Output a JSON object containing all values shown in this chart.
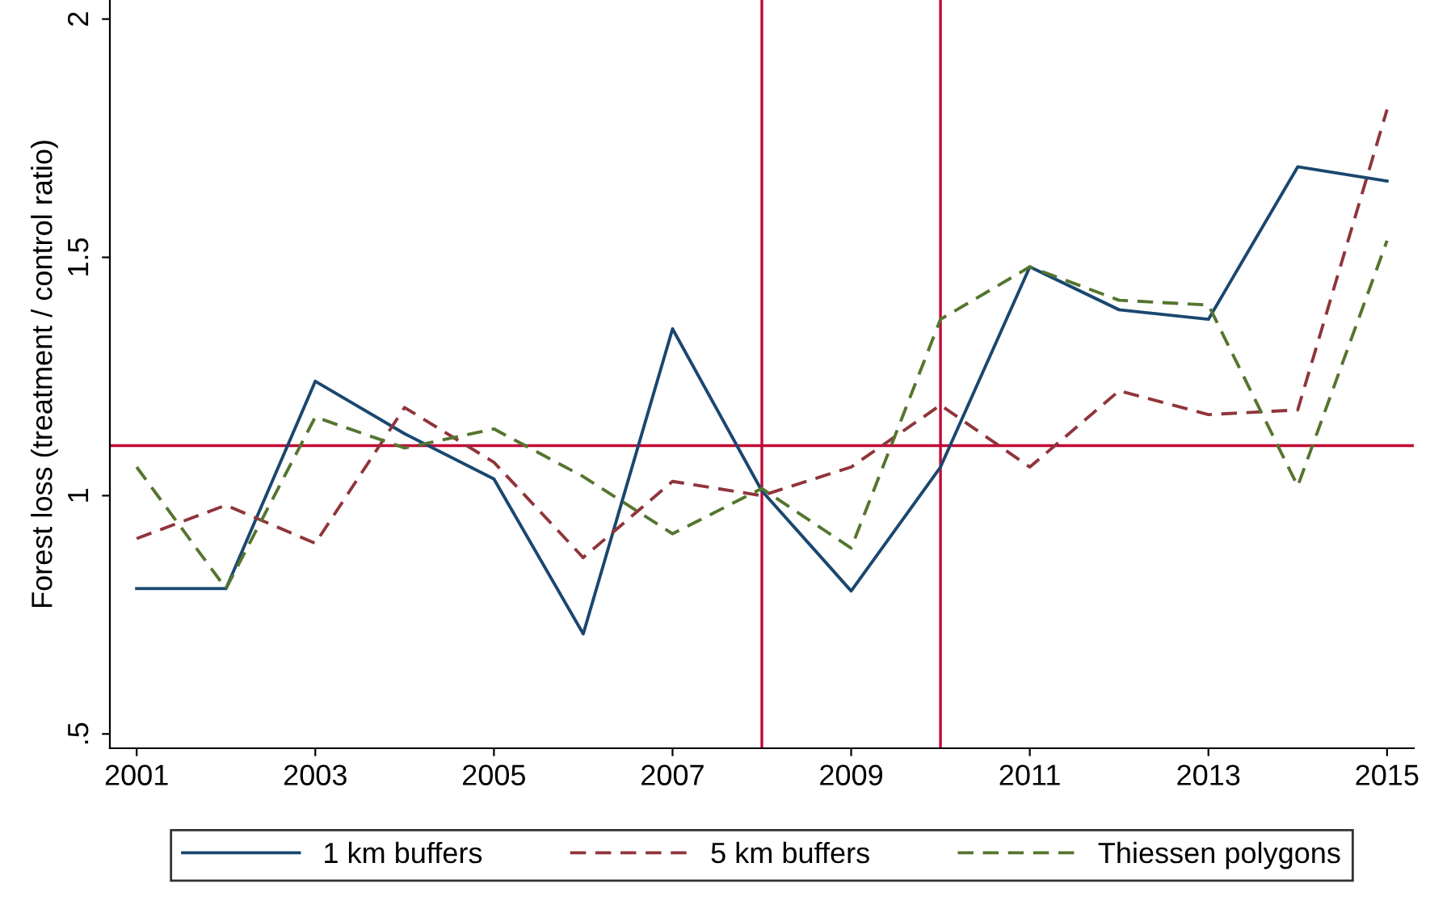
{
  "chart_data": {
    "type": "line",
    "ylabel": "Forest loss (treatment / control ratio)",
    "x": [
      2001,
      2002,
      2003,
      2004,
      2005,
      2006,
      2007,
      2008,
      2009,
      2010,
      2011,
      2012,
      2013,
      2014,
      2015
    ],
    "series": [
      {
        "name": "1 km buffers",
        "color": "#1a476f",
        "line_style": "solid",
        "values": [
          0.805,
          0.805,
          1.24,
          1.13,
          1.035,
          0.71,
          1.35,
          1.01,
          0.8,
          1.06,
          1.48,
          1.39,
          1.37,
          1.69,
          1.66
        ]
      },
      {
        "name": "5 km buffers",
        "color": "#90353b",
        "line_style": "dashed",
        "values": [
          0.91,
          0.98,
          0.9,
          1.185,
          1.07,
          0.87,
          1.03,
          1.0,
          1.06,
          1.19,
          1.06,
          1.22,
          1.17,
          1.18,
          1.81
        ]
      },
      {
        "name": "Thiessen polygons",
        "color": "#55752f",
        "line_style": "dashed",
        "values": [
          1.06,
          0.805,
          1.165,
          1.1,
          1.14,
          1.04,
          0.92,
          1.015,
          0.89,
          1.37,
          1.48,
          1.41,
          1.4,
          1.02,
          1.535
        ]
      }
    ],
    "xlim": [
      2000.7,
      2015.3
    ],
    "ylim": [
      0.47,
      2.04
    ],
    "xticks": [
      2001,
      2003,
      2005,
      2007,
      2009,
      2011,
      2013,
      2015
    ],
    "yticks": [
      {
        "value": 0.5,
        "label": ".5"
      },
      1,
      1.5,
      2
    ],
    "ref_lines": [
      {
        "axis": "y",
        "value": 1.105,
        "color": "#c10534"
      },
      {
        "axis": "x",
        "value": 2008,
        "color": "#c10534"
      },
      {
        "axis": "x",
        "value": 2010,
        "color": "#c10534"
      }
    ],
    "grid": false,
    "legend": "bottom",
    "marker": "none"
  }
}
